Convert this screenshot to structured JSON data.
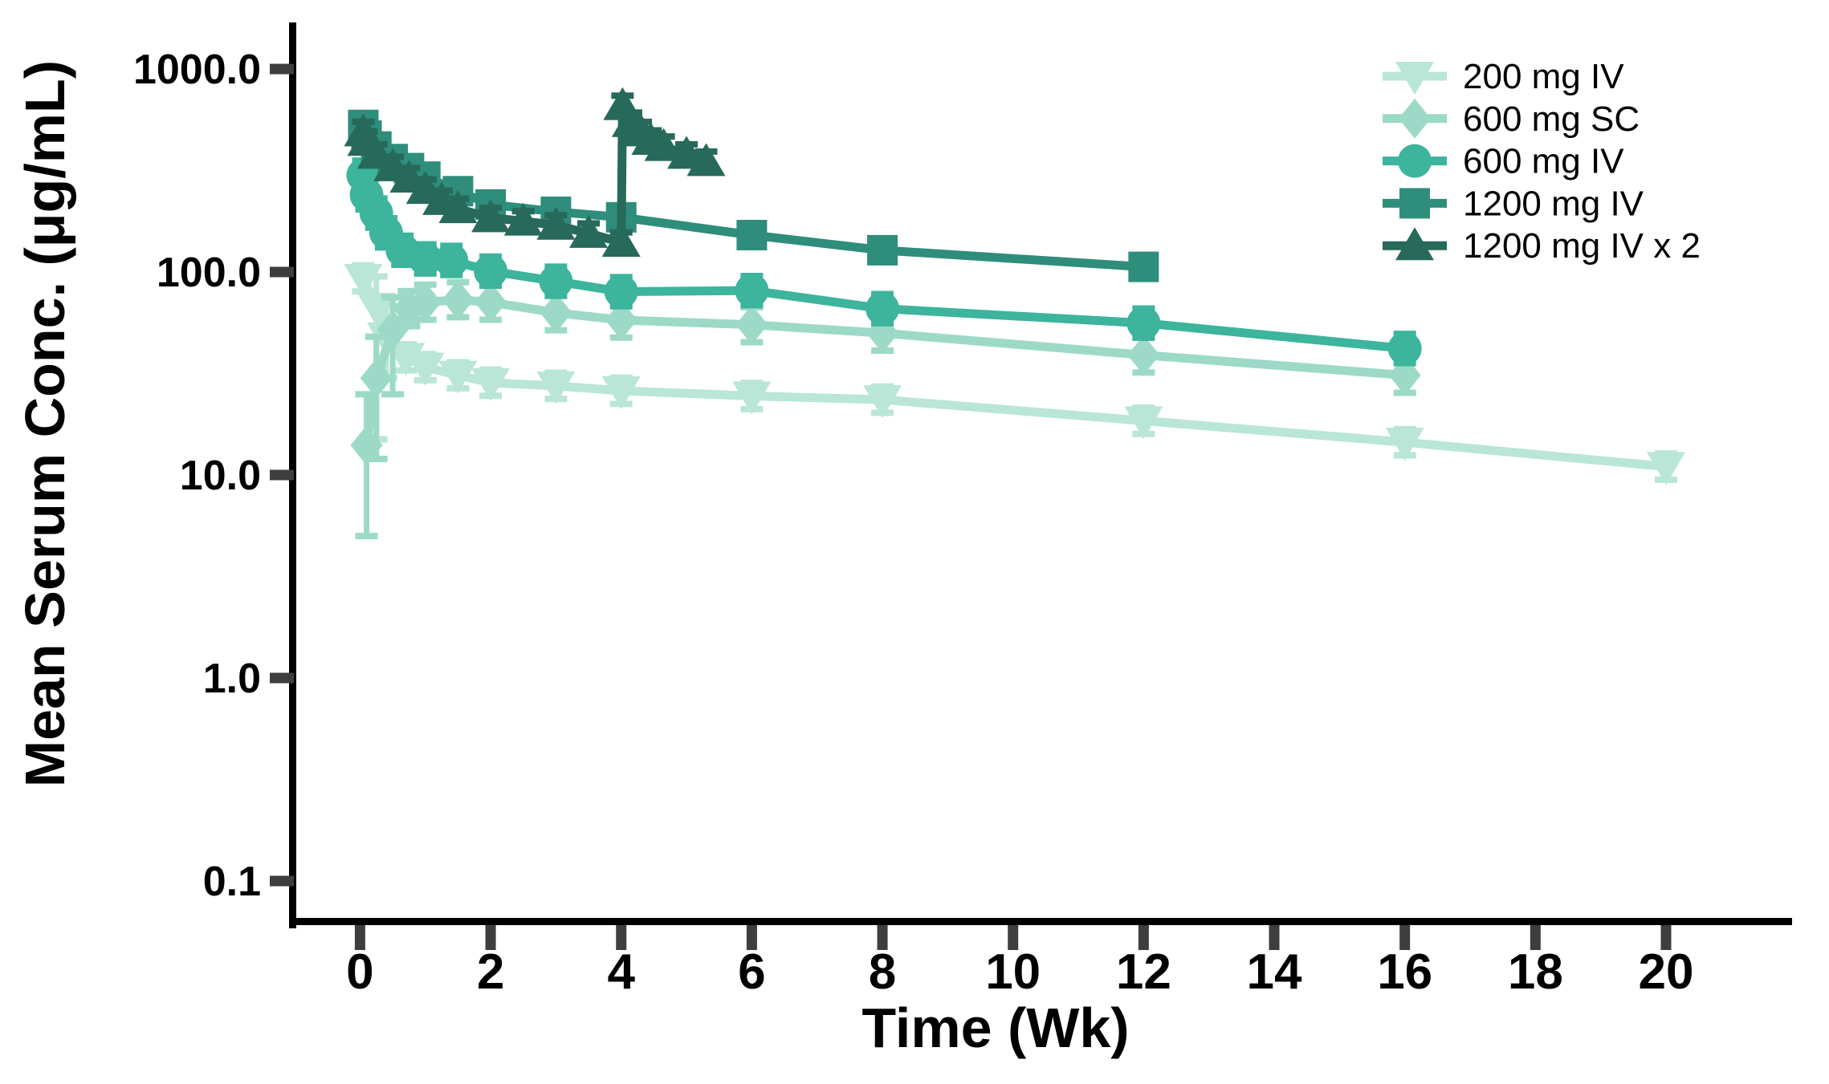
{
  "figure": {
    "background": "#ffffff"
  },
  "chart_data": {
    "type": "line",
    "title": "",
    "xlabel": "Time (Wk)",
    "ylabel": "Mean Serum Conc. (μg/mL)",
    "x_scale": "linear",
    "y_scale": "log10",
    "xlim": [
      -1.0,
      21.9
    ],
    "ylim": [
      0.04,
      2000
    ],
    "x_ticks": [
      0,
      2,
      4,
      6,
      8,
      10,
      12,
      14,
      16,
      18,
      20
    ],
    "x_tick_labels": [
      "0",
      "2",
      "4",
      "6",
      "8",
      "10",
      "12",
      "14",
      "16",
      "18",
      "20"
    ],
    "y_ticks": [
      1000.0,
      100.0,
      10.0,
      1.0,
      0.1
    ],
    "y_tick_labels": [
      "1000.0",
      "100.0",
      "10.0",
      "1.0",
      "0.1"
    ],
    "grid": false,
    "legend_position": "top-right",
    "series": [
      {
        "name": "200 mg IV",
        "marker": "triangle-down",
        "color": "#b9e6d6",
        "err_frac": 0.16,
        "err_overrides": {
          "1": [
            15,
            95
          ],
          "2": [
            30,
            68
          ]
        },
        "x": [
          0.05,
          0.25,
          0.4,
          0.7,
          1,
          1.5,
          2,
          3,
          4,
          6,
          8,
          12,
          16,
          20
        ],
        "y": [
          93,
          67,
          48,
          38,
          34,
          31,
          28.5,
          27.5,
          26,
          24.5,
          23.5,
          18.5,
          14.5,
          11
        ]
      },
      {
        "name": "600 mg SC",
        "marker": "diamond",
        "color": "#9cdac7",
        "err_frac": 0.22,
        "err_overrides": {
          "0": [
            5,
            25
          ],
          "1": [
            12,
            48
          ],
          "2": [
            25,
            75
          ]
        },
        "x": [
          0.1,
          0.25,
          0.5,
          0.75,
          1,
          1.5,
          2,
          3,
          4,
          6,
          8,
          12,
          16
        ],
        "y": [
          14,
          30,
          52,
          66,
          71,
          73,
          71,
          63,
          58,
          55,
          50,
          39,
          31
        ]
      },
      {
        "name": "600 mg IV",
        "marker": "circle",
        "color": "#3db49c",
        "err_frac": 0.18,
        "err_overrides": {},
        "x": [
          0.05,
          0.1,
          0.25,
          0.4,
          0.65,
          1,
          1.4,
          2,
          3,
          4,
          6,
          8,
          12,
          16
        ],
        "y": [
          300,
          240,
          195,
          156,
          128,
          116,
          114,
          101,
          90,
          80,
          81,
          66,
          56,
          42
        ]
      },
      {
        "name": "1200 mg IV",
        "marker": "square",
        "color": "#2e8d7b",
        "err_frac": 0.14,
        "err_overrides": {},
        "x": [
          0.05,
          0.1,
          0.25,
          0.5,
          0.75,
          1,
          1.5,
          2,
          3,
          4,
          6,
          8,
          12
        ],
        "y": [
          530,
          470,
          415,
          360,
          325,
          295,
          250,
          215,
          198,
          186,
          152,
          128,
          106
        ]
      },
      {
        "name": "1200 mg IV x 2",
        "marker": "triangle-up",
        "color": "#27695a",
        "err_frac": 0.12,
        "err_overrides": {},
        "x": [
          0.05,
          0.1,
          0.25,
          0.5,
          0.75,
          1,
          1.25,
          1.5,
          2,
          2.5,
          3,
          3.5,
          4,
          4.02,
          4.15,
          4.3,
          4.45,
          4.65,
          5.0,
          5.3
        ],
        "y": [
          490,
          440,
          380,
          330,
          290,
          255,
          225,
          205,
          185,
          178,
          170,
          155,
          140,
          660,
          545,
          490,
          445,
          415,
          380,
          350
        ]
      }
    ],
    "legend": {
      "items": [
        "200 mg IV",
        "600 mg SC",
        "600 mg IV",
        "1200 mg IV",
        "1200 mg IV x 2"
      ]
    }
  },
  "style": {
    "axis_color": "#000000",
    "tick_color": "#3e3e3e"
  }
}
